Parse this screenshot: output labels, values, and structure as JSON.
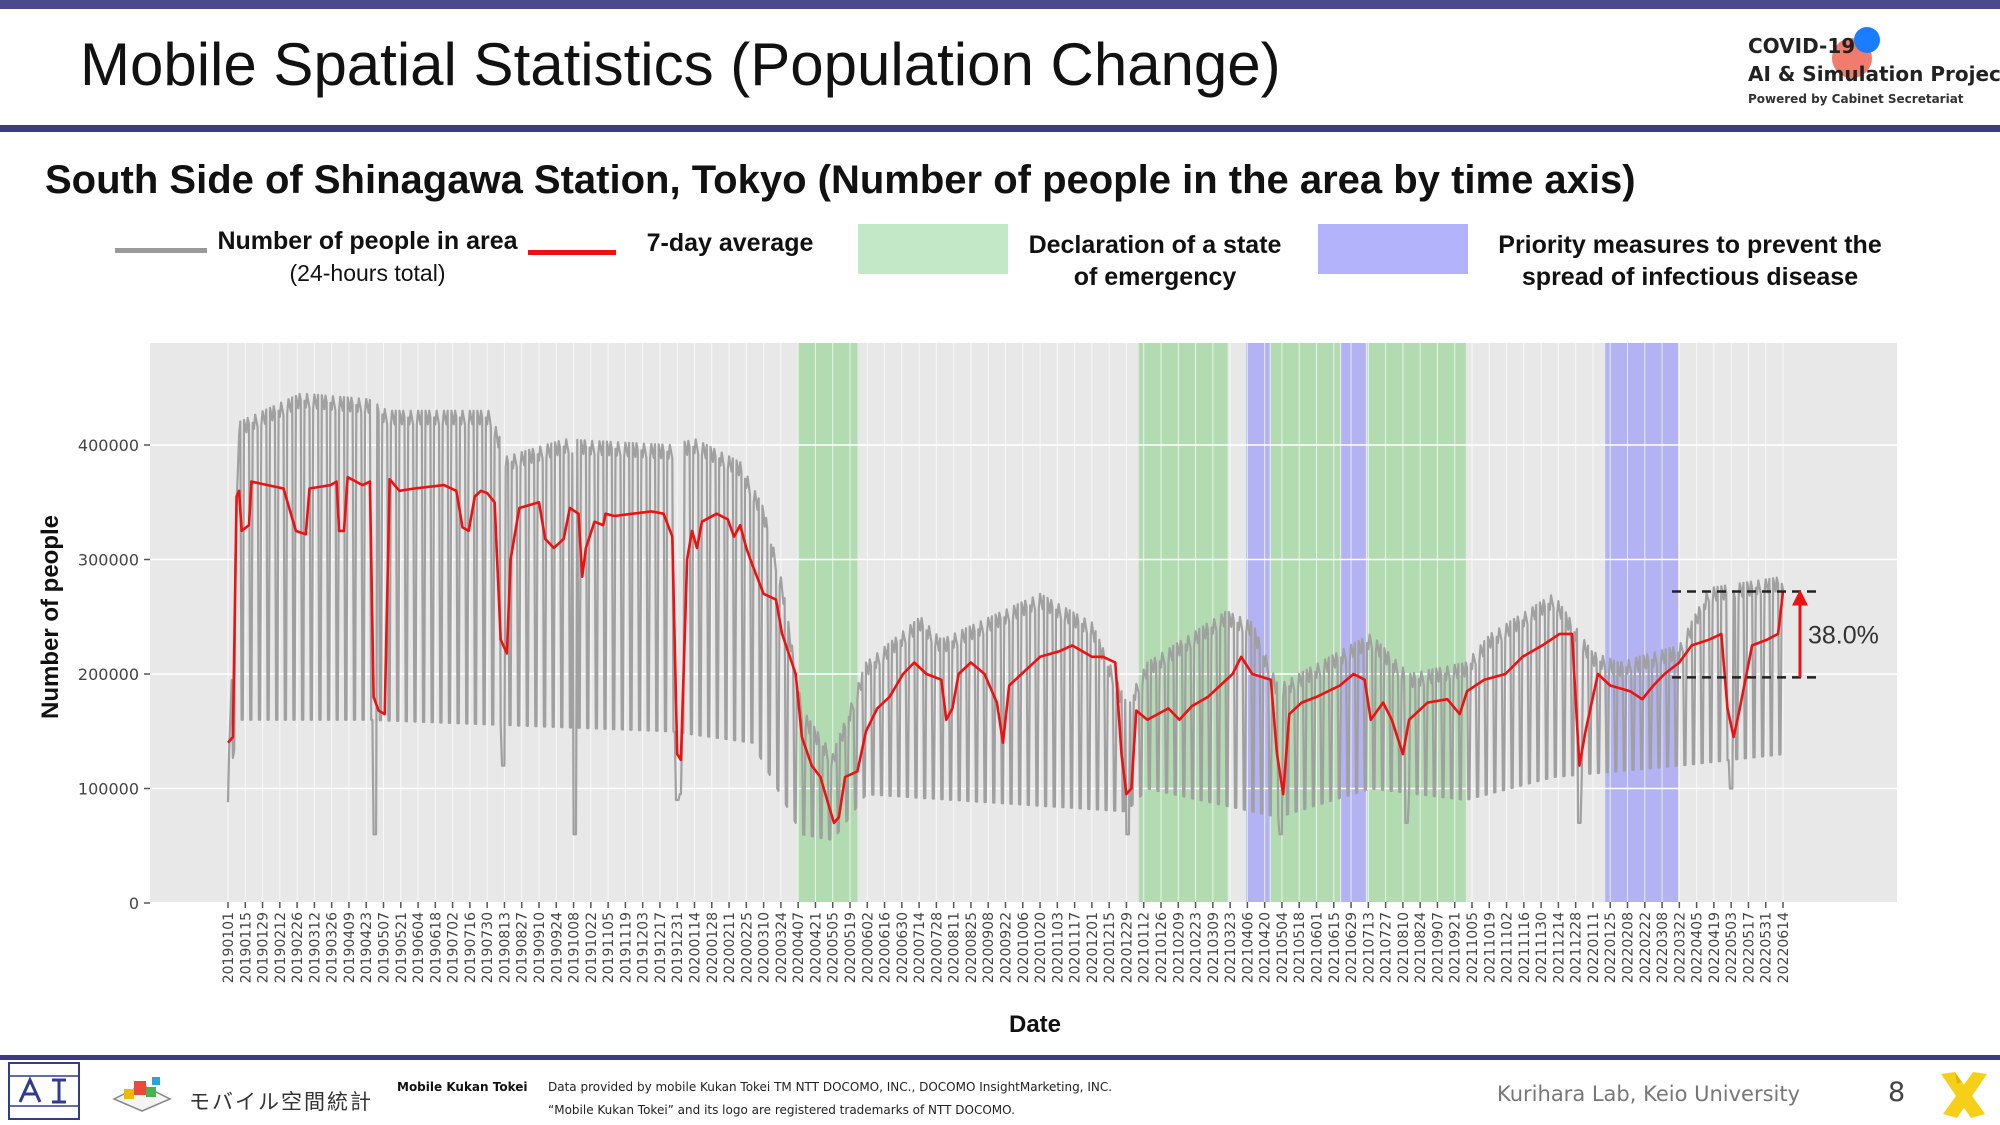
{
  "slide": {
    "title": "Mobile Spatial Statistics (Population Change)",
    "page_number": "8"
  },
  "logo": {
    "line1": "COVID-19",
    "line2": "AI & Simulation Project",
    "line3": "Powered by Cabinet Secretariat"
  },
  "legend": {
    "people_label": "Number of people in area",
    "people_sub": "(24-hours total)",
    "avg_label": "7-day average",
    "emergency_label_1": "Declaration of a state",
    "emergency_label_2": "of emergency",
    "priority_label_1": "Priority measures to prevent the",
    "priority_label_2": "spread of infectious disease"
  },
  "footer": {
    "brand": "Mobile Kukan Tokei",
    "jp_logo_text": "モバイル空間統計",
    "source_line1": "Data provided by mobile Kukan Tokei TM NTT DOCOMO, INC., DOCOMO InsightMarketing, INC.",
    "source_line2": "“Mobile Kukan Tokei” and its logo are registered trademarks of NTT DOCOMO.",
    "lab": "Kurihara Lab, Keio University"
  },
  "colors": {
    "header_rule": "#3b3b7d",
    "raw_series": "#a0a0a0",
    "avg_series": "#ee1111",
    "emergency_band": "#a8d8a8",
    "priority_band": "#a9a9f5",
    "plot_background": "#e8e8e8"
  },
  "chart_data": {
    "type": "line",
    "title": "South Side of Shinagawa Station, Tokyo (Number of people in the area by time axis)",
    "xlabel": "Date",
    "ylabel": "Number of people",
    "ylim": [
      -10000,
      400000
    ],
    "yticks": [
      0,
      100000,
      200000,
      300000,
      400000
    ],
    "ytick_labels": [
      "0",
      "100000",
      "200000",
      "300000",
      "400000"
    ],
    "grid": true,
    "xticks": [
      "20190101",
      "20190115",
      "20190129",
      "20190212",
      "20190226",
      "20190312",
      "20190326",
      "20190409",
      "20190423",
      "20190507",
      "20190521",
      "20190604",
      "20190618",
      "20190702",
      "20190716",
      "20190730",
      "20190813",
      "20190827",
      "20190910",
      "20190924",
      "20191008",
      "20191022",
      "20191105",
      "20191119",
      "20191203",
      "20191217",
      "20191231",
      "20200114",
      "20200128",
      "20200211",
      "20200225",
      "20200310",
      "20200324",
      "20200407",
      "20200421",
      "20200505",
      "20200519",
      "20200602",
      "20200616",
      "20200630",
      "20200714",
      "20200728",
      "20200811",
      "20200825",
      "20200908",
      "20200922",
      "20201006",
      "20201020",
      "20201103",
      "20201117",
      "20201201",
      "20201215",
      "20201229",
      "20210112",
      "20210126",
      "20210209",
      "20210223",
      "20210309",
      "20210323",
      "20210406",
      "20210420",
      "20210504",
      "20210518",
      "20210601",
      "20210615",
      "20210629",
      "20210713",
      "20210727",
      "20210810",
      "20210824",
      "20210907",
      "20210921",
      "20211005",
      "20211019",
      "20211102",
      "20211116",
      "20211130",
      "20211214",
      "20211228",
      "20220111",
      "20220125",
      "20220208",
      "20220222",
      "20220308",
      "20220322",
      "20220405",
      "20220419",
      "20220503",
      "20220517",
      "20220531",
      "20220614"
    ],
    "bands": [
      {
        "kind": "emergency",
        "start": "20200407",
        "end": "20200525"
      },
      {
        "kind": "emergency",
        "start": "20210108",
        "end": "20210321"
      },
      {
        "kind": "priority",
        "start": "20210405",
        "end": "20210424"
      },
      {
        "kind": "emergency",
        "start": "20210425",
        "end": "20210620"
      },
      {
        "kind": "priority",
        "start": "20210621",
        "end": "20210711"
      },
      {
        "kind": "emergency",
        "start": "20210712",
        "end": "20210930"
      },
      {
        "kind": "priority",
        "start": "20220121",
        "end": "20220321"
      }
    ],
    "series": [
      {
        "name": "Number of people in area",
        "style": "weekly-oscillating",
        "weekday_high": [
          [
            20190101,
            100000
          ],
          [
            20190110,
            420000
          ],
          [
            20190301,
            445000
          ],
          [
            20190425,
            440000
          ],
          [
            20190510,
            430000
          ],
          [
            20190801,
            430000
          ],
          [
            20190815,
            390000
          ],
          [
            20191001,
            405000
          ],
          [
            20191225,
            400000
          ],
          [
            20200115,
            405000
          ],
          [
            20200220,
            385000
          ],
          [
            20200310,
            345000
          ],
          [
            20200325,
            280000
          ],
          [
            20200410,
            170000
          ],
          [
            20200505,
            130000
          ],
          [
            20200601,
            210000
          ],
          [
            20200715,
            250000
          ],
          [
            20200801,
            230000
          ],
          [
            20201020,
            270000
          ],
          [
            20201201,
            245000
          ],
          [
            20201229,
            175000
          ],
          [
            20210115,
            210000
          ],
          [
            20210320,
            255000
          ],
          [
            20210410,
            245000
          ],
          [
            20210501,
            190000
          ],
          [
            20210715,
            235000
          ],
          [
            20210815,
            200000
          ],
          [
            20210930,
            210000
          ],
          [
            20211020,
            235000
          ],
          [
            20211210,
            270000
          ],
          [
            20220110,
            220000
          ],
          [
            20220201,
            210000
          ],
          [
            20220322,
            225000
          ],
          [
            20220415,
            275000
          ],
          [
            20220614,
            285000
          ]
        ],
        "weekend_low": [
          [
            20190101,
            100000
          ],
          [
            20190110,
            160000
          ],
          [
            20190425,
            160000
          ],
          [
            20191225,
            150000
          ],
          [
            20200301,
            140000
          ],
          [
            20200410,
            60000
          ],
          [
            20200505,
            55000
          ],
          [
            20200601,
            95000
          ],
          [
            20201229,
            80000
          ],
          [
            20210115,
            100000
          ],
          [
            20210501,
            75000
          ],
          [
            20210715,
            100000
          ],
          [
            20210930,
            90000
          ],
          [
            20211210,
            110000
          ],
          [
            20220322,
            120000
          ],
          [
            20220614,
            130000
          ]
        ],
        "dips": [
          [
            20190430,
            60000
          ],
          [
            20190812,
            120000
          ],
          [
            20191009,
            60000
          ],
          [
            20191231,
            90000
          ],
          [
            20200102,
            95000
          ],
          [
            20201230,
            60000
          ],
          [
            20210503,
            60000
          ],
          [
            20210813,
            70000
          ],
          [
            20211231,
            70000
          ],
          [
            20220503,
            100000
          ]
        ]
      },
      {
        "name": "7-day average",
        "points": [
          [
            20190101,
            140000
          ],
          [
            20190105,
            145000
          ],
          [
            20190108,
            355000
          ],
          [
            20190110,
            360000
          ],
          [
            20190112,
            325000
          ],
          [
            20190118,
            330000
          ],
          [
            20190120,
            368000
          ],
          [
            20190215,
            362000
          ],
          [
            20190225,
            325000
          ],
          [
            20190305,
            322000
          ],
          [
            20190308,
            362000
          ],
          [
            20190325,
            365000
          ],
          [
            20190330,
            368000
          ],
          [
            20190401,
            325000
          ],
          [
            20190405,
            325000
          ],
          [
            20190408,
            372000
          ],
          [
            20190420,
            365000
          ],
          [
            20190426,
            368000
          ],
          [
            20190429,
            180000
          ],
          [
            20190503,
            168000
          ],
          [
            20190508,
            165000
          ],
          [
            20190512,
            370000
          ],
          [
            20190520,
            360000
          ],
          [
            20190601,
            362000
          ],
          [
            20190625,
            365000
          ],
          [
            20190705,
            360000
          ],
          [
            20190710,
            328000
          ],
          [
            20190715,
            325000
          ],
          [
            20190720,
            355000
          ],
          [
            20190725,
            360000
          ],
          [
            20190730,
            358000
          ],
          [
            20190805,
            350000
          ],
          [
            20190810,
            230000
          ],
          [
            20190815,
            218000
          ],
          [
            20190818,
            300000
          ],
          [
            20190825,
            345000
          ],
          [
            20190910,
            350000
          ],
          [
            20190915,
            318000
          ],
          [
            20190922,
            310000
          ],
          [
            20190930,
            318000
          ],
          [
            20191005,
            345000
          ],
          [
            20191012,
            340000
          ],
          [
            20191015,
            285000
          ],
          [
            20191018,
            310000
          ],
          [
            20191025,
            333000
          ],
          [
            20191101,
            330000
          ],
          [
            20191103,
            340000
          ],
          [
            20191110,
            338000
          ],
          [
            20191125,
            340000
          ],
          [
            20191210,
            342000
          ],
          [
            20191220,
            340000
          ],
          [
            20191227,
            320000
          ],
          [
            20191231,
            130000
          ],
          [
            20200103,
            125000
          ],
          [
            20200108,
            300000
          ],
          [
            20200112,
            325000
          ],
          [
            20200116,
            310000
          ],
          [
            20200120,
            333000
          ],
          [
            20200201,
            340000
          ],
          [
            20200210,
            335000
          ],
          [
            20200215,
            320000
          ],
          [
            20200220,
            330000
          ],
          [
            20200225,
            310000
          ],
          [
            20200301,
            295000
          ],
          [
            20200310,
            270000
          ],
          [
            20200320,
            265000
          ],
          [
            20200325,
            235000
          ],
          [
            20200405,
            200000
          ],
          [
            20200410,
            145000
          ],
          [
            20200418,
            120000
          ],
          [
            20200425,
            110000
          ],
          [
            20200501,
            88000
          ],
          [
            20200506,
            70000
          ],
          [
            20200510,
            75000
          ],
          [
            20200515,
            110000
          ],
          [
            20200525,
            115000
          ],
          [
            20200601,
            150000
          ],
          [
            20200610,
            170000
          ],
          [
            20200620,
            180000
          ],
          [
            20200701,
            200000
          ],
          [
            20200710,
            210000
          ],
          [
            20200720,
            200000
          ],
          [
            20200801,
            195000
          ],
          [
            20200805,
            160000
          ],
          [
            20200810,
            170000
          ],
          [
            20200815,
            200000
          ],
          [
            20200825,
            210000
          ],
          [
            20200905,
            200000
          ],
          [
            20200915,
            175000
          ],
          [
            20200920,
            140000
          ],
          [
            20200925,
            190000
          ],
          [
            20201010,
            205000
          ],
          [
            20201020,
            215000
          ],
          [
            20201105,
            220000
          ],
          [
            20201115,
            225000
          ],
          [
            20201201,
            215000
          ],
          [
            20201210,
            215000
          ],
          [
            20201220,
            210000
          ],
          [
            20201225,
            130000
          ],
          [
            20201229,
            95000
          ],
          [
            20210102,
            100000
          ],
          [
            20210106,
            168000
          ],
          [
            20210115,
            160000
          ],
          [
            20210120,
            163000
          ],
          [
            20210201,
            170000
          ],
          [
            20210210,
            160000
          ],
          [
            20210220,
            172000
          ],
          [
            20210305,
            180000
          ],
          [
            20210315,
            190000
          ],
          [
            20210325,
            200000
          ],
          [
            20210401,
            215000
          ],
          [
            20210410,
            200000
          ],
          [
            20210425,
            195000
          ],
          [
            20210430,
            130000
          ],
          [
            20210505,
            95000
          ],
          [
            20210510,
            165000
          ],
          [
            20210520,
            175000
          ],
          [
            20210601,
            180000
          ],
          [
            20210620,
            190000
          ],
          [
            20210701,
            200000
          ],
          [
            20210710,
            195000
          ],
          [
            20210715,
            160000
          ],
          [
            20210725,
            175000
          ],
          [
            20210801,
            160000
          ],
          [
            20210810,
            130000
          ],
          [
            20210815,
            160000
          ],
          [
            20210830,
            175000
          ],
          [
            20210915,
            178000
          ],
          [
            20210925,
            165000
          ],
          [
            20211001,
            185000
          ],
          [
            20211015,
            195000
          ],
          [
            20211101,
            200000
          ],
          [
            20211115,
            215000
          ],
          [
            20211201,
            225000
          ],
          [
            20211215,
            235000
          ],
          [
            20211225,
            235000
          ],
          [
            20211231,
            120000
          ],
          [
            20220105,
            150000
          ],
          [
            20220115,
            200000
          ],
          [
            20220125,
            190000
          ],
          [
            20220210,
            185000
          ],
          [
            20220220,
            178000
          ],
          [
            20220301,
            190000
          ],
          [
            20220310,
            200000
          ],
          [
            20220322,
            210000
          ],
          [
            20220401,
            225000
          ],
          [
            20220415,
            230000
          ],
          [
            20220425,
            235000
          ],
          [
            20220430,
            170000
          ],
          [
            20220505,
            145000
          ],
          [
            20220510,
            170000
          ],
          [
            20220520,
            225000
          ],
          [
            20220601,
            230000
          ],
          [
            20220610,
            235000
          ],
          [
            20220614,
            272000
          ]
        ]
      }
    ],
    "annotations": [
      {
        "text": "38.0%",
        "from": 197000,
        "to": 272000
      }
    ]
  }
}
